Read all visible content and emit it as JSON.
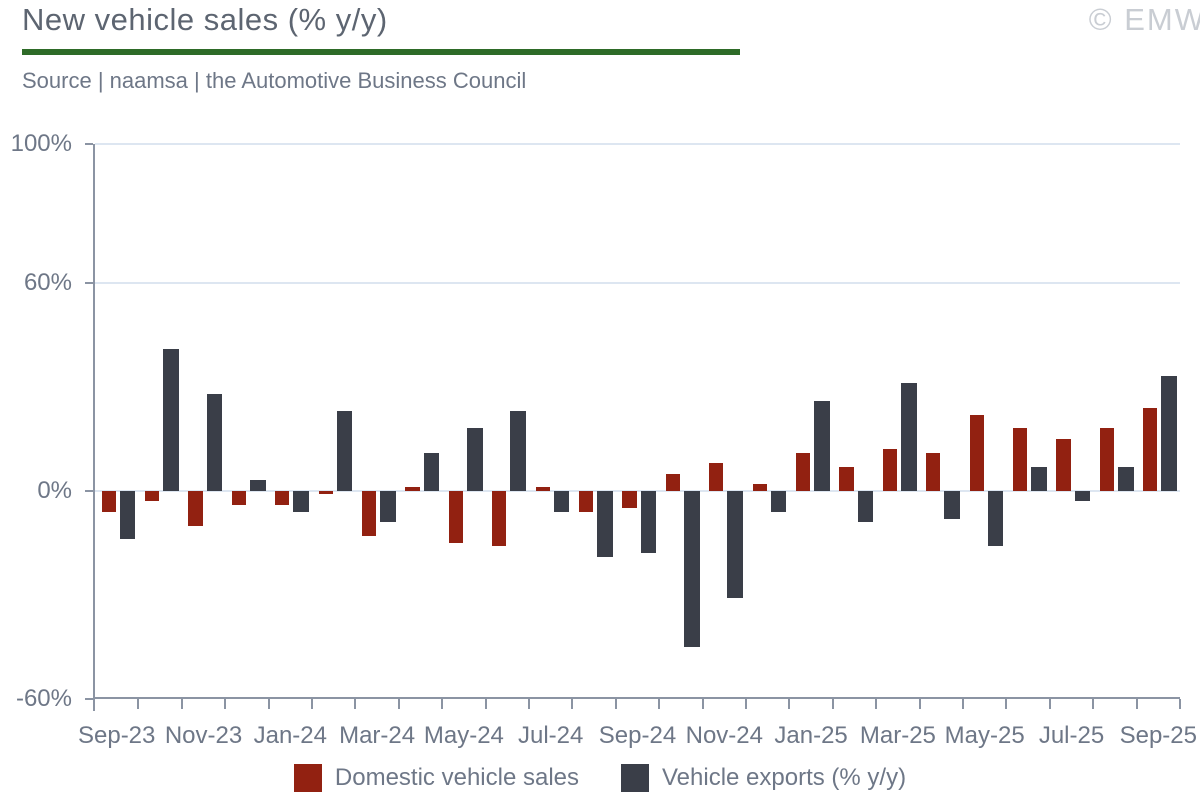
{
  "header": {
    "title": "New vehicle sales (% y/y)",
    "source": "Source | naamsa | the Automotive Business Council",
    "watermark": "© EMW"
  },
  "legend": [
    {
      "label": "Domestic vehicle sales",
      "color": "#922111"
    },
    {
      "label": "Vehicle exports (% y/y)",
      "color": "#3a3e48"
    }
  ],
  "colors": {
    "domestic_bar": "#922111",
    "exports_bar": "#3a3e48",
    "title_text": "#5d6571",
    "body_text": "#6e7787",
    "watermark_text": "#c9cdd3",
    "title_rule_green": "#2e6b28",
    "axis_line": "#8b94a3",
    "gridline": "#dde6f1"
  },
  "chart_data": {
    "type": "bar",
    "title": "New vehicle sales (% y/y)",
    "categories": [
      "Sep-23",
      "Oct-23",
      "Nov-23",
      "Dec-23",
      "Jan-24",
      "Feb-24",
      "Mar-24",
      "Apr-24",
      "May-24",
      "Jun-24",
      "Jul-24",
      "Aug-24",
      "Sep-24",
      "Oct-24",
      "Nov-24",
      "Dec-24",
      "Jan-25",
      "Feb-25",
      "Mar-25",
      "Apr-25",
      "May-25",
      "Jun-25",
      "Jul-25",
      "Aug-25",
      "Sep-25"
    ],
    "series": [
      {
        "name": "Domestic vehicle sales",
        "color": "#922111",
        "values": [
          -6,
          -3,
          -10,
          -4,
          -4,
          -1,
          -13,
          1,
          -15,
          -16,
          1,
          -6,
          -5,
          5,
          8,
          2,
          11,
          7,
          12,
          11,
          22,
          18,
          15,
          18,
          24
        ]
      },
      {
        "name": "Vehicle exports (% y/y)",
        "color": "#3a3e48",
        "values": [
          -14,
          41,
          28,
          3,
          -6,
          23,
          -9,
          11,
          18,
          23,
          -6,
          -19,
          -18,
          -45,
          -31,
          -6,
          26,
          -9,
          31,
          -8,
          -16,
          7,
          -3,
          7,
          33
        ]
      }
    ],
    "ylim": [
      -60,
      100
    ],
    "yticks": [
      {
        "value": 100,
        "label": "100%"
      },
      {
        "value": 60,
        "label": "60%"
      },
      {
        "value": 0,
        "label": "0%"
      },
      {
        "value": -60,
        "label": "-60%"
      }
    ],
    "gridline_values": [
      100,
      60,
      0
    ],
    "x_tick_labels": [
      "Sep-23",
      "Nov-23",
      "Jan-24",
      "Mar-24",
      "May-24",
      "Jul-24",
      "Sep-24",
      "Nov-24",
      "Jan-25",
      "Mar-25",
      "May-25",
      "Jul-25",
      "Sep-25"
    ],
    "grid": "horizontal",
    "legend_position": "bottom"
  }
}
